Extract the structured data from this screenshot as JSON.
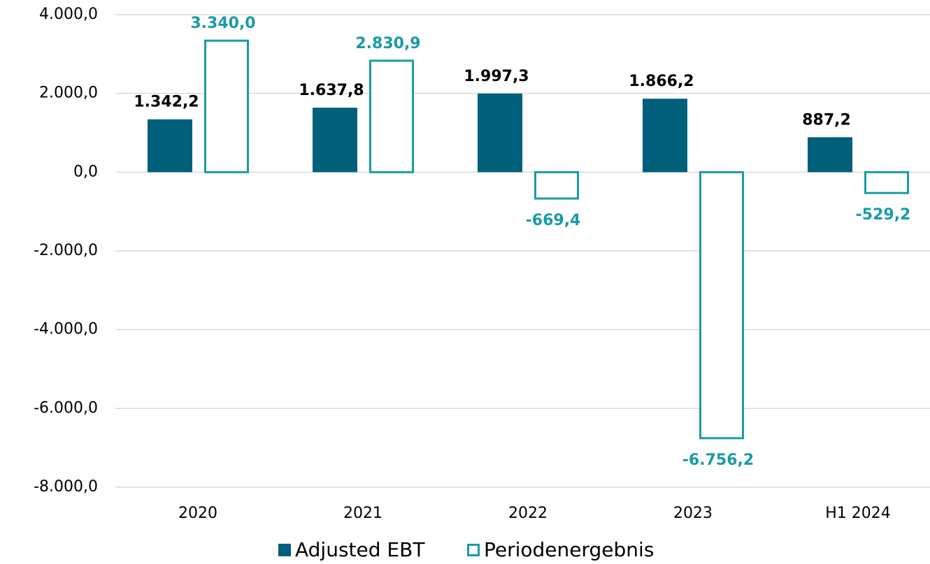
{
  "chart_data": {
    "type": "bar",
    "categories": [
      "2020",
      "2021",
      "2022",
      "2023",
      "H1 2024"
    ],
    "series": [
      {
        "name": "Adjusted EBT",
        "color": "#005f7a",
        "style": "filled",
        "label_color": "#000000",
        "values": [
          1342.2,
          1637.8,
          1997.3,
          1866.2,
          887.2
        ],
        "value_labels": [
          "1.342,2",
          "1.637,8",
          "1.997,3",
          "1.866,2",
          "887,2"
        ]
      },
      {
        "name": "Periodenergebnis",
        "color": "#1a9ba5",
        "style": "outline",
        "label_color": "#1a9ba5",
        "values": [
          3340.0,
          2830.9,
          -669.4,
          -6756.2,
          -529.2
        ],
        "value_labels": [
          "3.340,0",
          "2.830,9",
          "-669,4",
          "-6.756,2",
          "-529,2"
        ]
      }
    ],
    "ylim": [
      -8000,
      4000
    ],
    "yticks": [
      {
        "value": -8000,
        "label": "-8.000,0"
      },
      {
        "value": -6000,
        "label": "-6.000,0"
      },
      {
        "value": -4000,
        "label": "-4.000,0"
      },
      {
        "value": -2000,
        "label": "-2.000,0"
      },
      {
        "value": 0,
        "label": "0,0"
      },
      {
        "value": 2000,
        "label": "2.000,0"
      },
      {
        "value": 4000,
        "label": "4.000,0"
      }
    ],
    "grid": true,
    "legend": "bottom"
  }
}
